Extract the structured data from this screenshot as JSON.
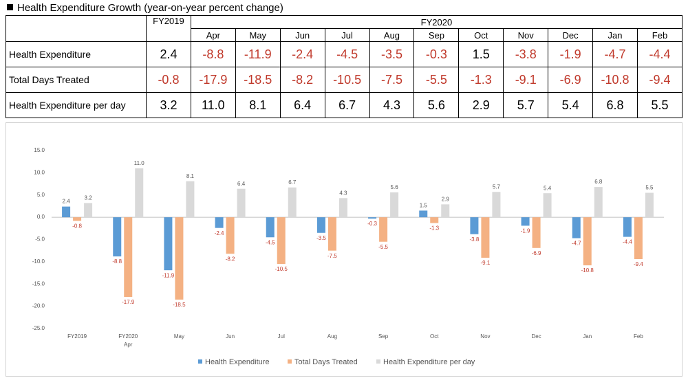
{
  "title": "Health Expenditure Growth (year-on-year percent change)",
  "table": {
    "group_header": "FY2020",
    "columns": [
      "FY2019",
      "Apr",
      "May",
      "Jun",
      "Jul",
      "Aug",
      "Sep",
      "Oct",
      "Nov",
      "Dec",
      "Jan",
      "Feb"
    ],
    "rows": [
      {
        "label": "Health Expenditure",
        "cells": [
          "2.4",
          "-8.8",
          "-11.9",
          "-2.4",
          "-4.5",
          "-3.5",
          "-0.3",
          "1.5",
          "-3.8",
          "-1.9",
          "-4.7",
          "-4.4"
        ]
      },
      {
        "label": "Total Days Treated",
        "cells": [
          "-0.8",
          "-17.9",
          "-18.5",
          "-8.2",
          "-10.5",
          "-7.5",
          "-5.5",
          "-1.3",
          "-9.1",
          "-6.9",
          "-10.8",
          "-9.4"
        ]
      },
      {
        "label": "Health Expenditure per day",
        "cells": [
          "3.2",
          "11.0",
          "8.1",
          "6.4",
          "6.7",
          "4.3",
          "5.6",
          "2.9",
          "5.7",
          "5.4",
          "6.8",
          "5.5"
        ]
      }
    ]
  },
  "chart_data": {
    "type": "bar",
    "categories": [
      "FY2019",
      "Apr",
      "May",
      "Jun",
      "Jul",
      "Aug",
      "Sep",
      "Oct",
      "Nov",
      "Dec",
      "Jan",
      "Feb"
    ],
    "category_group": "FY2020",
    "series": [
      {
        "name": "Health Expenditure",
        "color": "#5b9bd5",
        "values": [
          2.4,
          -8.8,
          -11.9,
          -2.4,
          -4.5,
          -3.5,
          -0.3,
          1.5,
          -3.8,
          -1.9,
          -4.7,
          -4.4
        ]
      },
      {
        "name": "Total Days Treated",
        "color": "#f4b183",
        "values": [
          -0.8,
          -17.9,
          -18.5,
          -8.2,
          -10.5,
          -7.5,
          -5.5,
          -1.3,
          -9.1,
          -6.9,
          -10.8,
          -9.4
        ]
      },
      {
        "name": "Health Expenditure per day",
        "color": "#d9d9d9",
        "values": [
          3.2,
          11,
          8.1,
          6.4,
          6.7,
          4.3,
          5.6,
          2.9,
          5.7,
          5.4,
          6.8,
          5.5
        ],
        "value_labels": [
          "3.2",
          "11.0",
          "8.1",
          "6.4",
          "6.7",
          "4.3",
          "5.6",
          "2.9",
          "5.7",
          "5.4",
          "6.8",
          "5.5"
        ]
      }
    ],
    "ylim": [
      -25,
      15
    ],
    "yticks": [
      {
        "value": -25,
        "label": "-25.0"
      },
      {
        "value": -20,
        "label": "-20.0"
      },
      {
        "value": -15,
        "label": "-15.0"
      },
      {
        "value": -10,
        "label": "-10.0"
      },
      {
        "value": -5,
        "label": "-5.0"
      },
      {
        "value": 0,
        "label": "0.0"
      },
      {
        "value": 5,
        "label": "5.0"
      },
      {
        "value": 10,
        "label": "10.0"
      },
      {
        "value": 15,
        "label": "15.0"
      }
    ],
    "grid": false,
    "legend": "bottom"
  }
}
